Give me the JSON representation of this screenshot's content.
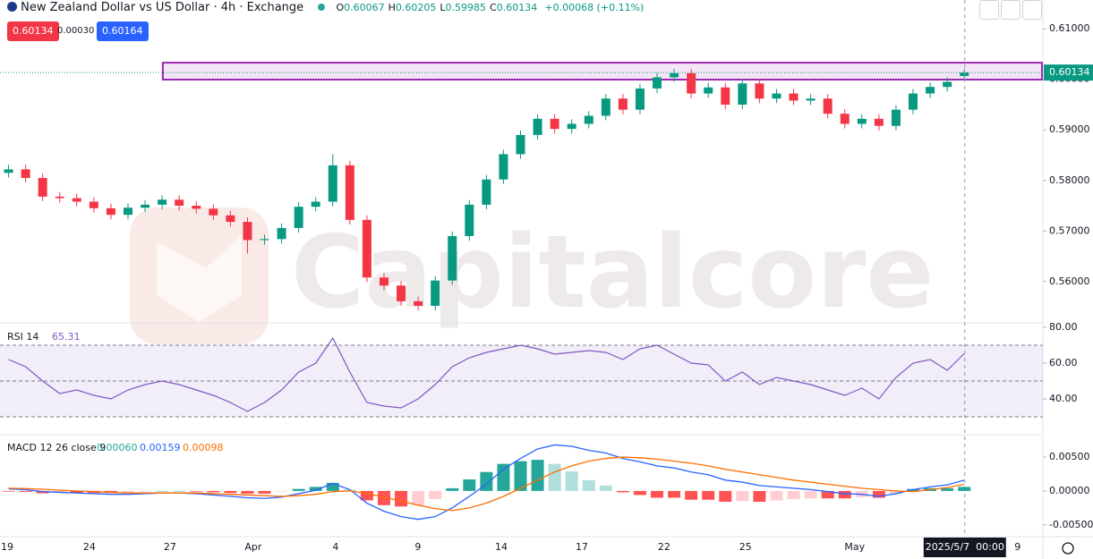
{
  "header": {
    "symbol": "New Zealand Dollar vs US Dollar · 4h · Exchange",
    "ohlc_labels": [
      "O",
      "H",
      "L",
      "C"
    ],
    "change": "+0.00068 (+0.11%)",
    "sell": "0.60134",
    "spread": "0.00030",
    "buy": "0.60164"
  },
  "watermark": "Capitalcore",
  "chart_data": [
    {
      "type": "candlestick",
      "open": [
        0.5815,
        0.5822,
        0.5805,
        0.5768,
        0.5765,
        0.5758,
        0.5745,
        0.5732,
        0.5746,
        0.5752,
        0.5762,
        0.575,
        0.5744,
        0.5731,
        0.5718,
        0.5682,
        0.5684,
        0.5706,
        0.5748,
        0.5758,
        0.583,
        0.5722,
        0.5608,
        0.5592,
        0.5561,
        0.5552,
        0.5602,
        0.569,
        0.5752,
        0.5802,
        0.5852,
        0.589,
        0.5922,
        0.5902,
        0.5912,
        0.5928,
        0.5962,
        0.594,
        0.5982,
        0.6004,
        0.6012,
        0.5972,
        0.5984,
        0.595,
        0.5992,
        0.5962,
        0.5972,
        0.5958,
        0.5962,
        0.5932,
        0.5912,
        0.5922,
        0.5908,
        0.594,
        0.5972,
        0.5985,
        0.60067
      ],
      "high": [
        0.5831,
        0.5831,
        0.5814,
        0.5777,
        0.5774,
        0.5767,
        0.5754,
        0.5755,
        0.5761,
        0.5771,
        0.5771,
        0.5759,
        0.5753,
        0.574,
        0.5727,
        0.5693,
        0.5715,
        0.5757,
        0.5767,
        0.5852,
        0.5839,
        0.5731,
        0.5617,
        0.5601,
        0.557,
        0.5611,
        0.5699,
        0.5761,
        0.5811,
        0.5861,
        0.5899,
        0.5931,
        0.5931,
        0.5921,
        0.5937,
        0.5971,
        0.5971,
        0.5991,
        0.6013,
        0.6021,
        0.6021,
        0.5993,
        0.5993,
        0.6001,
        0.6001,
        0.5981,
        0.5981,
        0.5971,
        0.5971,
        0.5941,
        0.5931,
        0.5931,
        0.5949,
        0.5981,
        0.5994,
        0.6004,
        0.60205
      ],
      "low": [
        0.5806,
        0.5796,
        0.5759,
        0.5756,
        0.5749,
        0.5736,
        0.5723,
        0.5723,
        0.5737,
        0.5743,
        0.5741,
        0.5735,
        0.5722,
        0.5709,
        0.5655,
        0.5673,
        0.5675,
        0.5697,
        0.5739,
        0.5749,
        0.5713,
        0.5599,
        0.5583,
        0.5552,
        0.5543,
        0.5543,
        0.5593,
        0.5681,
        0.5743,
        0.5793,
        0.5843,
        0.5881,
        0.5893,
        0.5893,
        0.5903,
        0.5919,
        0.5931,
        0.5931,
        0.5973,
        0.5995,
        0.5963,
        0.5963,
        0.5941,
        0.5941,
        0.5953,
        0.5953,
        0.5949,
        0.5949,
        0.5923,
        0.5903,
        0.5903,
        0.5899,
        0.5899,
        0.5931,
        0.5963,
        0.5976,
        0.59985
      ],
      "close": [
        0.5822,
        0.5805,
        0.5768,
        0.5765,
        0.5758,
        0.5745,
        0.5732,
        0.5746,
        0.5752,
        0.5762,
        0.575,
        0.5744,
        0.5731,
        0.5718,
        0.5682,
        0.5684,
        0.5706,
        0.5748,
        0.5758,
        0.583,
        0.5722,
        0.5608,
        0.5592,
        0.5561,
        0.5552,
        0.5602,
        0.569,
        0.5752,
        0.5802,
        0.5852,
        0.589,
        0.5922,
        0.5902,
        0.5912,
        0.5928,
        0.5962,
        0.594,
        0.5982,
        0.6004,
        0.6012,
        0.5972,
        0.5984,
        0.595,
        0.5992,
        0.5962,
        0.5972,
        0.5958,
        0.5962,
        0.5932,
        0.5912,
        0.5922,
        0.5908,
        0.594,
        0.5972,
        0.5985,
        0.5995,
        0.60134
      ],
      "up_color": "#089981",
      "down_color": "#f23645",
      "xlim": [
        -0.5,
        60.5
      ],
      "ylim": [
        0.552,
        0.6157
      ],
      "yticks": [
        {
          "value": 0.56,
          "label": "0.56000"
        },
        {
          "value": 0.57,
          "label": "0.57000"
        },
        {
          "value": 0.58,
          "label": "0.58000"
        },
        {
          "value": 0.59,
          "label": "0.59000"
        },
        {
          "value": 0.6,
          "label": "0.60000"
        },
        {
          "value": 0.61,
          "label": "0.61000"
        }
      ],
      "xticks": [
        {
          "value": -0.08,
          "label": "19"
        },
        {
          "value": 4.74,
          "label": "24"
        },
        {
          "value": 9.46,
          "label": "27"
        },
        {
          "value": 14.34,
          "label": "Apr"
        },
        {
          "value": 19.16,
          "label": "4"
        },
        {
          "value": 23.99,
          "label": "9"
        },
        {
          "value": 28.87,
          "label": "14"
        },
        {
          "value": 33.59,
          "label": "17"
        },
        {
          "value": 38.41,
          "label": "22"
        },
        {
          "value": 43.18,
          "label": "25"
        },
        {
          "value": 49.58,
          "label": "May"
        },
        {
          "value": 59.12,
          "label": "9"
        }
      ],
      "zone": {
        "low": 0.59995,
        "high": 0.6033,
        "start": 9.04,
        "color": "#9c27b0"
      },
      "crosshair": {
        "x": 56.03,
        "label": "2025/5/7  00:00"
      }
    },
    {
      "type": "line",
      "title": "RSI 14",
      "color": "#7e57c2",
      "values": [
        62,
        58,
        50,
        43,
        45,
        42,
        40,
        45,
        48,
        50,
        48,
        45,
        42,
        38,
        33,
        38,
        45,
        55,
        60,
        74,
        55,
        38,
        36,
        35,
        40,
        48,
        58,
        63,
        66,
        68,
        70,
        68,
        65,
        66,
        67,
        66,
        62,
        68,
        70,
        65,
        60,
        59,
        50,
        55,
        48,
        52,
        50,
        48,
        45,
        42,
        46,
        40,
        52,
        60,
        62,
        56,
        65.31
      ],
      "levels": [
        70,
        50,
        30
      ],
      "ylim": [
        20.5,
        82
      ],
      "yticks": [
        {
          "value": 40,
          "label": "40.00"
        },
        {
          "value": 60,
          "label": "60.00"
        },
        {
          "value": 80,
          "label": "80.00"
        }
      ]
    },
    {
      "type": "macd",
      "title": "MACD 12 26 close 9",
      "histogram": [
        -0.0001,
        -0.00015,
        -0.00035,
        -0.0003,
        -0.0003,
        -0.0003,
        -0.0003,
        -0.0002,
        -0.0001,
        0,
        0,
        -0.0001,
        -0.0002,
        -0.0003,
        -0.0004,
        -0.0004,
        -0.0001,
        0.0003,
        0.0006,
        0.0012,
        0.0002,
        -0.0014,
        -0.0021,
        -0.0023,
        -0.0021,
        -0.0012,
        0.0004,
        0.0017,
        0.0028,
        0.004,
        0.0044,
        0.0046,
        0.004,
        0.0029,
        0.0016,
        0.0008,
        -0.0002,
        -0.0006,
        -0.001,
        -0.001,
        -0.0013,
        -0.0013,
        -0.0016,
        -0.0015,
        -0.0016,
        -0.0014,
        -0.0012,
        -0.0011,
        -0.0011,
        -0.0011,
        -0.0009,
        -0.001,
        -0.0004,
        0.0003,
        0.0004,
        0.0004,
        0.0006
      ],
      "macd": [
        0.0003,
        0.0002,
        -0.0001,
        -0.0002,
        -0.0003,
        -0.0004,
        -0.0005,
        -0.0005,
        -0.0004,
        -0.0003,
        -0.0003,
        -0.0004,
        -0.0006,
        -0.0008,
        -0.001,
        -0.0011,
        -0.0009,
        -0.0004,
        0.0001,
        0.0011,
        0.0002,
        -0.0018,
        -0.003,
        -0.0038,
        -0.0042,
        -0.0038,
        -0.0025,
        -0.0008,
        0.001,
        0.0032,
        0.0048,
        0.0062,
        0.0068,
        0.0066,
        0.006,
        0.0056,
        0.0048,
        0.0043,
        0.0037,
        0.0034,
        0.0028,
        0.0024,
        0.0016,
        0.0013,
        0.0008,
        0.0006,
        0.0004,
        0.0002,
        -0.0001,
        -0.0004,
        -0.0005,
        -0.0008,
        -0.0004,
        0.0002,
        0.0006,
        0.0009,
        0.00159
      ],
      "signal": [
        0.0004,
        0.00035,
        0.00025,
        0.0001,
        0,
        -0.0001,
        -0.0002,
        -0.0003,
        -0.0003,
        -0.0003,
        -0.0003,
        -0.0003,
        -0.0004,
        -0.0005,
        -0.0006,
        -0.0007,
        -0.0008,
        -0.0007,
        -0.0005,
        -0.0001,
        0,
        -0.0004,
        -0.0009,
        -0.0015,
        -0.0021,
        -0.0026,
        -0.0029,
        -0.0025,
        -0.0018,
        -0.0008,
        0.0004,
        0.0016,
        0.0028,
        0.0037,
        0.0044,
        0.0048,
        0.005,
        0.0049,
        0.0047,
        0.0044,
        0.0041,
        0.0037,
        0.0032,
        0.0028,
        0.0024,
        0.002,
        0.0016,
        0.0013,
        0.001,
        0.0007,
        0.0004,
        0.0002,
        0,
        -0.0001,
        0.0002,
        0.0005,
        0.00098
      ],
      "legend_values": [
        "0.00060",
        "0.00159",
        "0.00098"
      ],
      "colors": {
        "histogram": [
          "#26a69a",
          "#b2dfdb",
          "#ff5252",
          "#ffcdd2"
        ],
        "macd": "#2962ff",
        "signal": "#ff6d00"
      },
      "ylim": [
        -0.00675,
        0.00818
      ],
      "yticks": [
        {
          "value": -0.005,
          "label": "-0.00500"
        },
        {
          "value": 0,
          "label": "0.00000"
        },
        {
          "value": 0.005,
          "label": "0.00500"
        }
      ]
    }
  ]
}
